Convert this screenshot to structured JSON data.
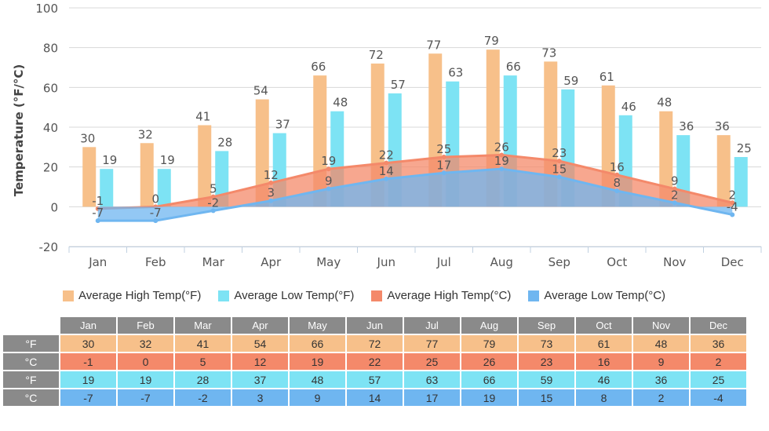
{
  "chart_data": {
    "type": "bar+area",
    "categories": [
      "Jan",
      "Feb",
      "Mar",
      "Apr",
      "May",
      "Jun",
      "Jul",
      "Aug",
      "Sep",
      "Oct",
      "Nov",
      "Dec"
    ],
    "ylabel": "Temperature (°F/°C)",
    "ylim": [
      -20,
      100
    ],
    "yticks": [
      "-20",
      "0",
      "20",
      "40",
      "60",
      "80",
      "100"
    ],
    "grid": true,
    "series": [
      {
        "name": "Average High Temp(°F)",
        "kind": "bar",
        "color": "#f7c08a",
        "values": [
          30,
          32,
          41,
          54,
          66,
          72,
          77,
          79,
          73,
          61,
          48,
          36
        ]
      },
      {
        "name": "Average Low Temp(°F)",
        "kind": "bar",
        "color": "#7de3f4",
        "values": [
          19,
          19,
          28,
          37,
          48,
          57,
          63,
          66,
          59,
          46,
          36,
          25
        ]
      },
      {
        "name": "Average High Temp(°C)",
        "kind": "area",
        "color": "#f4896a",
        "values": [
          -1,
          0,
          5,
          12,
          19,
          22,
          25,
          26,
          23,
          16,
          9,
          2
        ]
      },
      {
        "name": "Average Low Temp(°C)",
        "kind": "area",
        "color": "#6fb6f0",
        "values": [
          -7,
          -7,
          -2,
          3,
          9,
          14,
          17,
          19,
          15,
          8,
          2,
          -4
        ]
      }
    ],
    "legend_position": "bottom"
  },
  "table": {
    "rows": [
      {
        "label": "°F",
        "color": "#f7c08a",
        "values": [
          "30",
          "32",
          "41",
          "54",
          "66",
          "72",
          "77",
          "79",
          "73",
          "61",
          "48",
          "36"
        ]
      },
      {
        "label": "°C",
        "color": "#f4896a",
        "values": [
          "-1",
          "0",
          "5",
          "12",
          "19",
          "22",
          "25",
          "26",
          "23",
          "16",
          "9",
          "2"
        ]
      },
      {
        "label": "°F",
        "color": "#7de3f4",
        "values": [
          "19",
          "19",
          "28",
          "37",
          "48",
          "57",
          "63",
          "66",
          "59",
          "46",
          "36",
          "25"
        ]
      },
      {
        "label": "°C",
        "color": "#6fb6f0",
        "values": [
          "-7",
          "-7",
          "-2",
          "3",
          "9",
          "14",
          "17",
          "19",
          "15",
          "8",
          "2",
          "-4"
        ]
      }
    ]
  }
}
